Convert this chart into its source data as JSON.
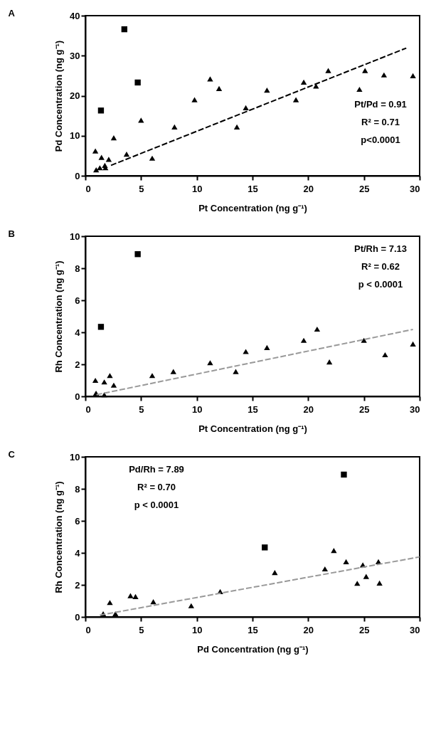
{
  "chart_data": [
    {
      "type": "scatter",
      "title": "A",
      "xlabel": "Pt Concentration (ng g⁻¹)",
      "ylabel": "Pd Concentration (ng g⁻¹)",
      "xlim": [
        0,
        30
      ],
      "xticks": [
        0,
        5,
        10,
        15,
        20,
        25,
        30
      ],
      "ylim": [
        0,
        40
      ],
      "yticks": [
        0,
        10,
        20,
        30,
        40
      ],
      "grid": false,
      "annotations": [
        "Pt/Pd = 0.91",
        "R² = 0.71",
        "p<0.0001"
      ],
      "series": [
        {
          "marker": "triangle",
          "color": "#000000",
          "x": [
            0.9,
            0.97,
            1.45,
            1.3,
            1.75,
            1.8,
            2.1,
            2.55,
            3.7,
            5.0,
            6.0,
            8.0,
            9.8,
            11.2,
            12.0,
            13.6,
            14.4,
            16.3,
            18.9,
            19.6,
            20.7,
            21.8,
            24.6,
            25.1,
            26.8,
            29.4
          ],
          "values": [
            6.2,
            1.5,
            4.6,
            2.0,
            2.6,
            2.0,
            4.1,
            9.5,
            5.4,
            13.9,
            4.4,
            12.2,
            19.0,
            24.2,
            21.8,
            12.2,
            17.0,
            21.4,
            19.0,
            23.4,
            22.4,
            26.3,
            21.6,
            26.3,
            25.2,
            25.0
          ]
        },
        {
          "marker": "square",
          "color": "#000000",
          "x": [
            3.5,
            4.7,
            1.4
          ],
          "values": [
            36.6,
            23.3,
            16.3
          ]
        },
        {
          "type": "line",
          "line_style": "dashed",
          "color": "#000000",
          "x": [
            2.3,
            28.8
          ],
          "values": [
            2.6,
            31.9
          ]
        }
      ]
    },
    {
      "type": "scatter",
      "title": "B",
      "xlabel": "Pt Concentration (ng g⁻¹)",
      "ylabel": "Rh Concentration (ng g⁻¹)",
      "xlim": [
        0,
        30
      ],
      "xticks": [
        0,
        5,
        10,
        15,
        20,
        25,
        30
      ],
      "ylim": [
        0,
        10
      ],
      "yticks": [
        0,
        2,
        4,
        6,
        8,
        10
      ],
      "grid": false,
      "annotations": [
        "Pt/Rh = 7.13",
        "R² = 0.62",
        "p < 0.0001"
      ],
      "series": [
        {
          "marker": "triangle",
          "color": "#000000",
          "x": [
            0.9,
            0.96,
            1.7,
            1.7,
            2.2,
            2.55,
            6.0,
            7.9,
            11.2,
            13.5,
            14.4,
            16.3,
            19.6,
            20.8,
            21.9,
            25.0,
            26.9,
            29.4
          ],
          "values": [
            1.0,
            0.2,
            0.9,
            0.1,
            1.3,
            0.7,
            1.3,
            1.55,
            2.1,
            1.55,
            2.8,
            3.05,
            3.5,
            4.2,
            2.15,
            3.5,
            2.6,
            3.27
          ]
        },
        {
          "marker": "square",
          "color": "#000000",
          "x": [
            4.7,
            1.4
          ],
          "values": [
            8.88,
            4.34
          ]
        },
        {
          "type": "line",
          "line_style": "dashed",
          "color": "#999999",
          "x": [
            1.0,
            29.4
          ],
          "values": [
            0.1,
            4.18
          ]
        }
      ]
    },
    {
      "type": "scatter",
      "title": "C",
      "xlabel": "Pd Concentration (ng g⁻¹)",
      "ylabel": "Rh Concentration (ng g⁻¹)",
      "xlim": [
        0,
        30
      ],
      "xticks": [
        0,
        5,
        10,
        15,
        20,
        25,
        30
      ],
      "ylim": [
        0,
        10
      ],
      "yticks": [
        0,
        2,
        4,
        6,
        8,
        10
      ],
      "grid": false,
      "annotations": [
        "Pd/Rh = 7.89",
        "R² = 0.70",
        "p < 0.0001"
      ],
      "series": [
        {
          "marker": "triangle",
          "color": "#000000",
          "x": [
            1.6,
            2.2,
            2.7,
            4.05,
            4.5,
            6.1,
            9.5,
            12.1,
            17.0,
            21.5,
            22.3,
            23.4,
            24.9,
            24.4,
            25.2,
            26.3,
            26.4
          ],
          "values": [
            0.2,
            0.9,
            0.2,
            1.33,
            1.27,
            0.95,
            0.7,
            1.58,
            2.77,
            3.0,
            4.15,
            3.45,
            3.25,
            2.1,
            2.53,
            3.45,
            2.12
          ]
        },
        {
          "marker": "square",
          "color": "#000000",
          "x": [
            23.2,
            16.1
          ],
          "values": [
            8.89,
            4.34
          ]
        },
        {
          "type": "line",
          "line_style": "dashed",
          "color": "#999999",
          "x": [
            1.3,
            30
          ],
          "values": [
            0.11,
            3.75
          ]
        }
      ]
    }
  ]
}
